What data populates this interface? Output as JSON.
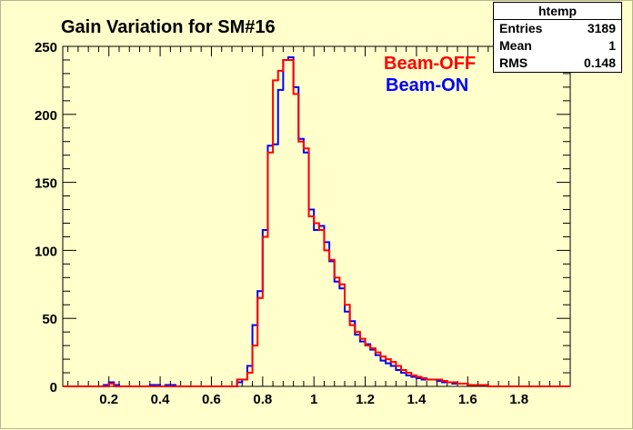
{
  "chart_data": {
    "type": "histogram",
    "title": "Gain Variation for SM#16",
    "xlim": [
      0.02,
      2.0
    ],
    "ylim": [
      0,
      250
    ],
    "x_ticks": [
      "0.2",
      "0.4",
      "0.6",
      "0.8",
      "1",
      "1.2",
      "1.4",
      "1.6",
      "1.8"
    ],
    "x_tick_values": [
      0.2,
      0.4,
      0.6,
      0.8,
      1.0,
      1.2,
      1.4,
      1.6,
      1.8
    ],
    "y_ticks": [
      "0",
      "50",
      "100",
      "150",
      "200",
      "250"
    ],
    "y_tick_values": [
      0,
      50,
      100,
      150,
      200,
      250
    ],
    "bin_width": 0.02,
    "x_start": 0.02,
    "series": [
      {
        "name": "Beam-OFF",
        "color": "#ff0000",
        "values": [
          0,
          0,
          0,
          0,
          0,
          0,
          0,
          0,
          0,
          2,
          0,
          0,
          0,
          0,
          0,
          0,
          0,
          0,
          0,
          0,
          0,
          0,
          0,
          0,
          0,
          0,
          0,
          0,
          0,
          0,
          0,
          0,
          0,
          0,
          5,
          5,
          10,
          30,
          65,
          110,
          172,
          225,
          232,
          240,
          240,
          215,
          180,
          175,
          125,
          120,
          115,
          100,
          93,
          80,
          75,
          60,
          45,
          40,
          35,
          30,
          28,
          25,
          22,
          20,
          18,
          15,
          12,
          10,
          8,
          7,
          6,
          5,
          5,
          5,
          4,
          3,
          3,
          2,
          2,
          1,
          1,
          1,
          1,
          0,
          0,
          0,
          0,
          0,
          0,
          0,
          0,
          0,
          0,
          0,
          0,
          0,
          0,
          0,
          0
        ]
      },
      {
        "name": "Beam-ON",
        "color": "#0000ff",
        "values": [
          0,
          0,
          0,
          0,
          0,
          0,
          0,
          0,
          1,
          3,
          1,
          0,
          0,
          0,
          0,
          0,
          0,
          1,
          1,
          0,
          1,
          1,
          0,
          0,
          0,
          0,
          0,
          0,
          0,
          0,
          0,
          0,
          0,
          0,
          3,
          5,
          15,
          45,
          70,
          115,
          177,
          178,
          218,
          240,
          242,
          220,
          182,
          172,
          130,
          115,
          118,
          106,
          92,
          77,
          72,
          55,
          48,
          38,
          33,
          31,
          27,
          23,
          19,
          17,
          15,
          12,
          10,
          8,
          7,
          6,
          5,
          5,
          5,
          4,
          3,
          3,
          2,
          2,
          2,
          1,
          1,
          1,
          1,
          0,
          0,
          0,
          0,
          0,
          0,
          0,
          0,
          0,
          0,
          0,
          0,
          0,
          0,
          0,
          0
        ]
      }
    ],
    "stats": {
      "name": "htemp",
      "entries_label": "Entries",
      "entries": "3189",
      "mean_label": "Mean",
      "mean": "1",
      "rms_label": "RMS",
      "rms": "0.148"
    },
    "legend": [
      "Beam-OFF",
      "Beam-ON"
    ],
    "background_color": "#ffffcc"
  }
}
